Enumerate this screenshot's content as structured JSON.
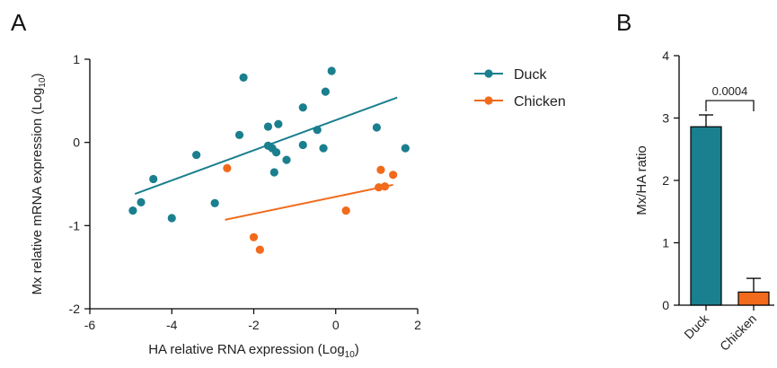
{
  "chart_data": [
    {
      "panel_label": "A",
      "type": "scatter",
      "xlabel": "HA relative RNA expression (Log",
      "xlabel_sub": "10",
      "xlabel_tail": ")",
      "ylabel": "Mx relative mRNA expression (Log",
      "ylabel_sub": "10",
      "ylabel_tail": ")",
      "xlim": [
        -6,
        2
      ],
      "ylim": [
        -2,
        1
      ],
      "xticks": [
        -6,
        -4,
        -2,
        0,
        2
      ],
      "yticks": [
        -2,
        -1,
        0,
        1
      ],
      "xtick_labels": [
        "-6",
        "-4",
        "-2",
        "0",
        "2"
      ],
      "ytick_labels": [
        "-2",
        "-1",
        "0",
        "1"
      ],
      "legend_position": "right",
      "series": [
        {
          "name": "Duck",
          "color": "#1a7f8e",
          "points": [
            [
              -4.95,
              -0.82
            ],
            [
              -4.75,
              -0.72
            ],
            [
              -4.45,
              -0.44
            ],
            [
              -4.0,
              -0.91
            ],
            [
              -3.4,
              -0.15
            ],
            [
              -2.95,
              -0.73
            ],
            [
              -2.35,
              0.09
            ],
            [
              -2.25,
              0.78
            ],
            [
              -1.65,
              -0.04
            ],
            [
              -1.65,
              0.19
            ],
            [
              -1.55,
              -0.07
            ],
            [
              -1.5,
              -0.36
            ],
            [
              -1.45,
              -0.12
            ],
            [
              -1.4,
              0.22
            ],
            [
              -1.2,
              -0.21
            ],
            [
              -0.8,
              0.42
            ],
            [
              -0.8,
              -0.03
            ],
            [
              -0.45,
              0.15
            ],
            [
              -0.3,
              -0.07
            ],
            [
              -0.25,
              0.61
            ],
            [
              -0.1,
              0.86
            ],
            [
              1.0,
              0.18
            ],
            [
              1.7,
              -0.07
            ]
          ],
          "fit": {
            "x": [
              -4.9,
              1.5
            ],
            "y": [
              -0.62,
              0.54
            ]
          }
        },
        {
          "name": "Chicken",
          "color": "#f26a1b",
          "points": [
            [
              -2.65,
              -0.31
            ],
            [
              -2.0,
              -1.14
            ],
            [
              -1.85,
              -1.29
            ],
            [
              0.25,
              -0.82
            ],
            [
              1.05,
              -0.54
            ],
            [
              1.1,
              -0.33
            ],
            [
              1.2,
              -0.53
            ],
            [
              1.4,
              -0.39
            ]
          ],
          "fit": {
            "x": [
              -2.7,
              1.4
            ],
            "y": [
              -0.93,
              -0.51
            ]
          }
        }
      ]
    },
    {
      "panel_label": "B",
      "type": "bar",
      "ylabel": "Mx/HA ratio",
      "ylim": [
        0,
        4
      ],
      "yticks": [
        0,
        1,
        2,
        3,
        4
      ],
      "ytick_labels": [
        "0",
        "1",
        "2",
        "3",
        "4"
      ],
      "categories": [
        "Duck",
        "Chicken"
      ],
      "values": [
        2.86,
        0.21
      ],
      "error": [
        0.19,
        0.22
      ],
      "colors": [
        "#1a7f8e",
        "#f26a1b"
      ],
      "annotation": {
        "text": "0.0004",
        "y": 3.28
      }
    }
  ]
}
